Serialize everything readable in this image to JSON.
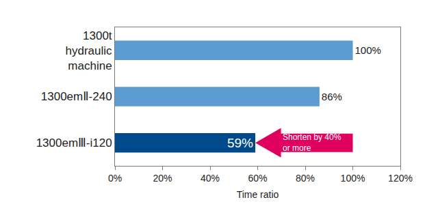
{
  "chart_data": {
    "type": "bar",
    "orientation": "horizontal",
    "categories": [
      "1300t hydraulic machine",
      "1300emⅡ-240",
      "1300emⅢ-i120"
    ],
    "values": [
      100,
      86,
      59
    ],
    "value_labels": [
      "100%",
      "86%",
      "59%"
    ],
    "colors": [
      "#5b9bd0",
      "#5b9bd0",
      "#004a8c"
    ],
    "data_labels": true,
    "x_label": "Time ratio",
    "xlim": [
      0,
      120
    ],
    "xticks": [
      {
        "value": 0,
        "label": "0%"
      },
      {
        "value": 20,
        "label": "20%"
      },
      {
        "value": 40,
        "label": "40%"
      },
      {
        "value": 60,
        "label": "60%"
      },
      {
        "value": 80,
        "label": "80%"
      },
      {
        "value": 100,
        "label": "100%"
      },
      {
        "value": 120,
        "label": "120%"
      }
    ],
    "grid": false,
    "annotations": [
      {
        "text": "Shorten by 40% or more"
      }
    ]
  }
}
